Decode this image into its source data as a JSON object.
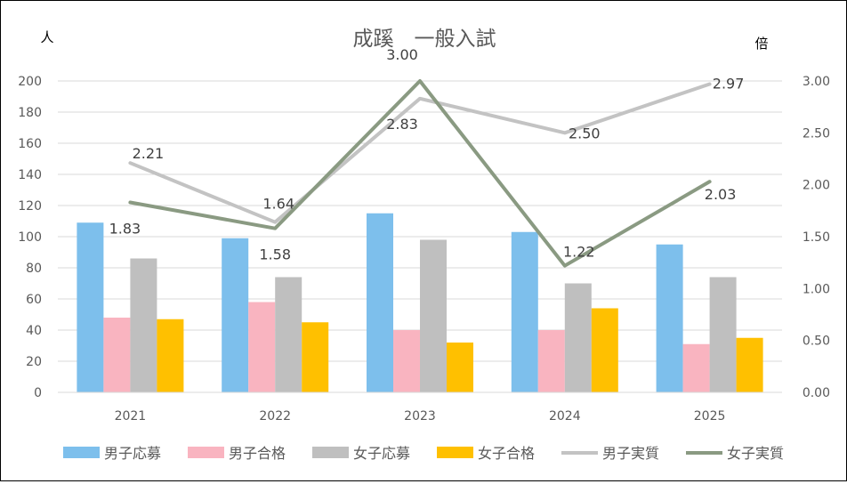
{
  "chart_data": {
    "type": "bar+line",
    "title": "成蹊　一般入試",
    "left_axis_unit": "人",
    "right_axis_unit": "倍",
    "categories": [
      "2021",
      "2022",
      "2023",
      "2024",
      "2025"
    ],
    "left_axis": {
      "min": 0,
      "max": 200,
      "ticks": [
        "0",
        "20",
        "40",
        "60",
        "80",
        "100",
        "120",
        "140",
        "160",
        "180",
        "200"
      ]
    },
    "right_axis": {
      "min": 0,
      "max": 3,
      "ticks": [
        "0.00",
        "0.50",
        "1.00",
        "1.50",
        "2.00",
        "2.50",
        "3.00"
      ]
    },
    "grid": true,
    "legend_position": "bottom",
    "bar_series": [
      {
        "name": "男子応募",
        "color": "#7dbfec",
        "values": [
          109,
          99,
          115,
          103,
          95
        ]
      },
      {
        "name": "男子合格",
        "color": "#f9b4c0",
        "values": [
          48,
          58,
          40,
          40,
          31
        ]
      },
      {
        "name": "女子応募",
        "color": "#bfbfbf",
        "values": [
          86,
          74,
          98,
          70,
          74
        ]
      },
      {
        "name": "女子合格",
        "color": "#ffc000",
        "values": [
          47,
          45,
          32,
          54,
          35
        ]
      }
    ],
    "line_series": [
      {
        "name": "男子実質",
        "color": "#c3c3c3",
        "values": [
          2.21,
          1.64,
          2.83,
          2.5,
          2.97
        ],
        "labels": [
          "2.21",
          "1.64",
          "2.83",
          "2.50",
          "2.97"
        ]
      },
      {
        "name": "女子実質",
        "color": "#8a9a82",
        "values": [
          1.83,
          1.58,
          3.0,
          1.22,
          2.03
        ],
        "labels": [
          "1.83",
          "1.58",
          "3.00",
          "1.22",
          "2.03"
        ]
      }
    ]
  }
}
